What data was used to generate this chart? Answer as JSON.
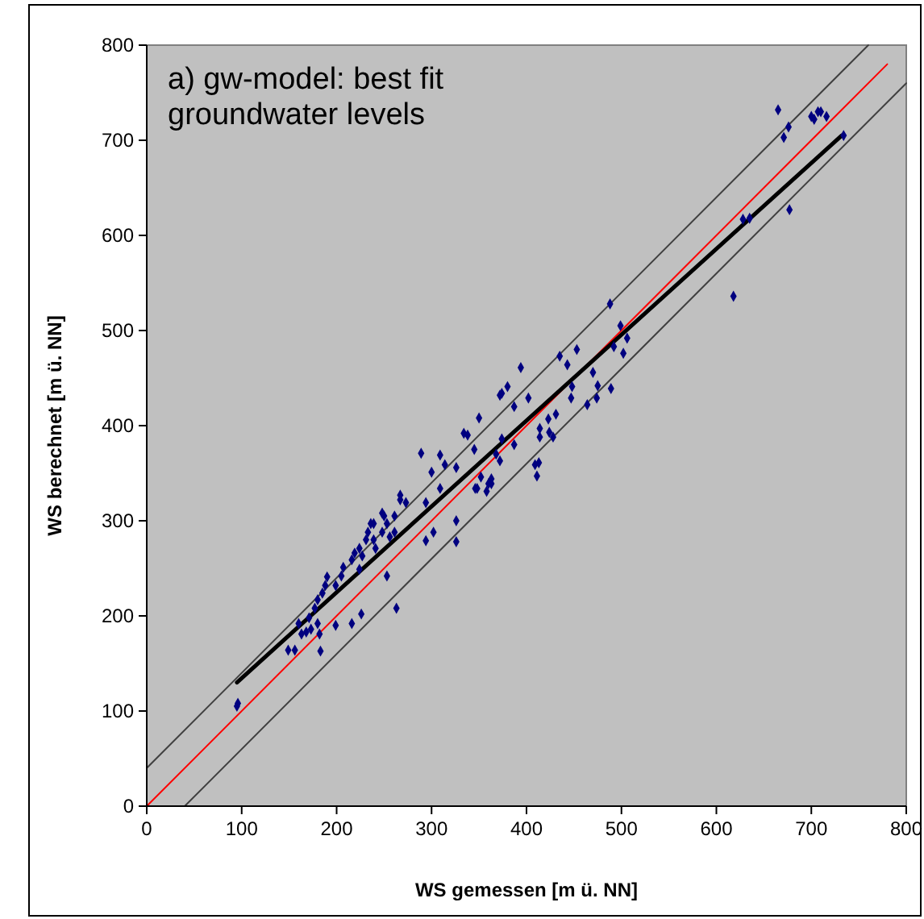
{
  "chart_data": {
    "type": "scatter",
    "title": "a) gw-model: best fit\ngroundwater levels",
    "xlabel": "WS gemessen [m ü. NN]",
    "ylabel": "WS berechnet [m ü. NN]",
    "xlim": [
      0,
      800
    ],
    "ylim": [
      0,
      800
    ],
    "xticks": [
      0,
      100,
      200,
      300,
      400,
      500,
      600,
      700,
      800
    ],
    "yticks": [
      0,
      100,
      200,
      300,
      400,
      500,
      600,
      700,
      800
    ],
    "grid": false,
    "series": [
      {
        "type": "line",
        "color": "#404040",
        "marker": "none",
        "x": [
          0,
          760
        ],
        "values": [
          40,
          800
        ]
      },
      {
        "type": "line",
        "color": "#404040",
        "marker": "none",
        "x": [
          40,
          800
        ],
        "values": [
          0,
          760
        ]
      },
      {
        "type": "line",
        "color": "#ff0000",
        "marker": "none",
        "x": [
          0,
          780
        ],
        "values": [
          0,
          780
        ]
      },
      {
        "type": "line",
        "color": "#000000",
        "marker": "none",
        "x": [
          95,
          732
        ],
        "values": [
          130,
          705
        ]
      },
      {
        "color": "#000080",
        "marker": "diamond",
        "x": [
          96,
          95,
          183,
          149,
          156,
          163,
          168,
          173,
          160,
          171,
          180,
          182,
          177,
          180,
          185,
          188,
          190,
          199,
          205,
          207,
          216,
          219,
          224,
          227,
          231,
          233,
          236,
          239,
          241,
          248,
          250,
          253,
          256,
          261,
          267,
          273,
          261,
          248,
          239,
          267,
          224,
          216,
          226,
          199,
          253,
          263,
          289,
          309,
          314,
          300,
          309,
          294,
          302,
          326,
          334,
          345,
          350,
          326,
          326,
          348,
          360,
          372,
          394,
          374,
          380,
          387,
          402,
          294,
          435,
          453,
          443,
          470,
          448,
          447,
          464,
          474,
          475,
          489,
          423,
          431,
          414,
          424,
          414,
          428,
          374,
          387,
          368,
          372,
          413,
          409,
          411,
          352,
          363,
          363,
          346,
          358,
          499,
          506,
          492,
          502,
          338,
          488,
          665,
          676,
          671,
          700,
          703,
          707,
          710,
          716,
          734,
          677,
          628,
          635,
          618
        ],
        "values": [
          108,
          105,
          163,
          164,
          164,
          181,
          183,
          186,
          192,
          198,
          192,
          181,
          208,
          217,
          224,
          232,
          241,
          232,
          242,
          251,
          259,
          266,
          271,
          263,
          280,
          288,
          297,
          280,
          271,
          288,
          305,
          297,
          283,
          305,
          322,
          319,
          288,
          308,
          297,
          327,
          249,
          192,
          202,
          190,
          242,
          208,
          371,
          369,
          359,
          351,
          334,
          319,
          288,
          356,
          392,
          375,
          408,
          300,
          278,
          334,
          339,
          432,
          461,
          434,
          441,
          420,
          429,
          279,
          473,
          480,
          464,
          456,
          441,
          429,
          422,
          429,
          442,
          439,
          407,
          412,
          397,
          393,
          388,
          388,
          386,
          380,
          370,
          363,
          361,
          359,
          347,
          346,
          344,
          339,
          334,
          331,
          505,
          492,
          483,
          476,
          390,
          528,
          732,
          714,
          703,
          725,
          722,
          730,
          730,
          725,
          705,
          627,
          617,
          618,
          536
        ]
      }
    ]
  }
}
